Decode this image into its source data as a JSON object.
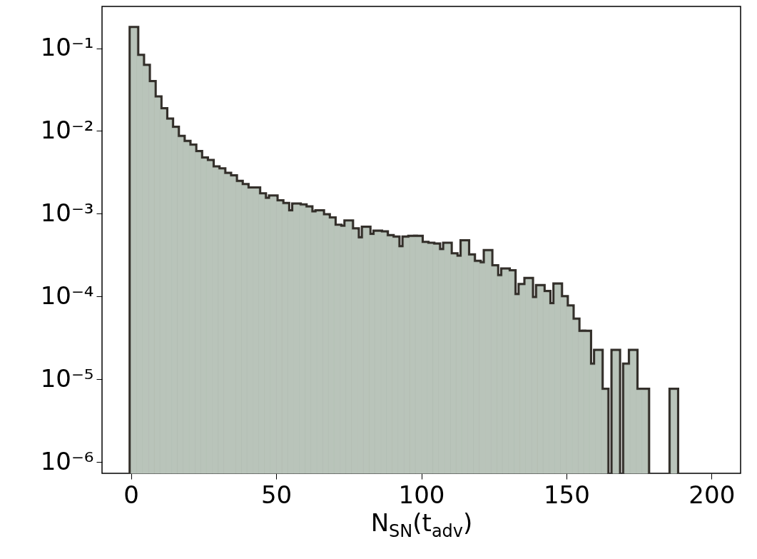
{
  "chart_data": {
    "type": "histogram",
    "xlabel": "N$_{SN}$(t$_{adv}$)",
    "color": "#b9c4ba",
    "log": "y",
    "grid": false,
    "xlim": [
      -10,
      210
    ],
    "xticks": [
      0,
      50,
      100,
      150,
      200
    ],
    "ylim": [
      7.3e-07,
      0.32
    ],
    "yticks": [
      {
        "value": 1e-06,
        "label": "10⁻⁶"
      },
      {
        "value": 1e-05,
        "label": "10⁻⁵"
      },
      {
        "value": 0.0001,
        "label": "10⁻⁴"
      },
      {
        "value": 0.001,
        "label": "10⁻³"
      },
      {
        "value": 0.01,
        "label": "10⁻²"
      },
      {
        "value": 0.1,
        "label": "10⁻¹"
      }
    ],
    "bins": [
      0,
      2,
      4,
      6,
      8,
      10,
      12,
      14,
      16,
      18,
      20,
      22,
      24,
      26,
      28,
      30,
      32,
      34,
      36,
      38,
      40,
      42,
      44,
      46,
      48,
      50,
      52,
      54,
      56,
      58,
      60,
      62,
      64,
      66,
      68,
      70,
      72,
      74,
      76,
      78,
      80,
      82,
      84,
      86,
      88,
      90,
      92,
      94,
      96,
      98,
      100,
      102,
      104,
      106,
      108,
      110,
      112,
      114,
      116,
      118,
      120,
      122,
      124,
      126,
      128,
      130,
      132,
      134,
      136,
      138,
      140,
      142,
      144,
      146,
      148,
      150,
      152,
      154,
      156,
      158,
      160,
      162,
      164,
      166,
      168,
      170,
      172,
      174,
      176,
      178,
      180,
      182,
      184,
      186,
      188,
      190,
      192,
      194,
      196,
      198,
      200
    ],
    "values": [
      0.174,
      0.08,
      0.0605,
      0.0386,
      0.0252,
      0.0181,
      0.0136,
      0.0108,
      0.0084,
      0.0073,
      0.0066,
      0.0055,
      0.0046,
      0.0043,
      0.0036,
      0.0034,
      0.003,
      0.0028,
      0.0024,
      0.0022,
      0.002,
      0.002,
      0.0017,
      0.0015,
      0.0016,
      0.0014,
      0.0013,
      0.00106,
      0.00128,
      0.00125,
      0.00118,
      0.00103,
      0.00106,
      0.00095,
      0.00087,
      0.00071,
      0.00069,
      0.0008,
      0.00064,
      0.0005,
      0.00067,
      0.00055,
      0.0006,
      0.00059,
      0.00053,
      0.00051,
      0.00039,
      0.00051,
      0.00052,
      0.00052,
      0.00044,
      0.00043,
      0.00042,
      0.00036,
      0.00043,
      0.00032,
      0.0003,
      0.00046,
      0.00031,
      0.00026,
      0.00025,
      0.00035,
      0.00023,
      0.000175,
      0.00021,
      0.0002,
      0.000103,
      0.000136,
      0.000161,
      9.5e-05,
      0.000132,
      0.000112,
      8e-05,
      0.000138,
      9.7e-05,
      7.5e-05,
      5.2e-05,
      3.7e-05,
      3.7e-05,
      1.49e-05,
      2.18e-05,
      7.4e-06,
      null,
      2.18e-05,
      null,
      1.49e-05,
      2.18e-05,
      7.4e-06,
      7.4e-06,
      null,
      null,
      null,
      null,
      7.4e-06,
      null,
      null,
      null,
      null,
      null,
      null
    ]
  }
}
